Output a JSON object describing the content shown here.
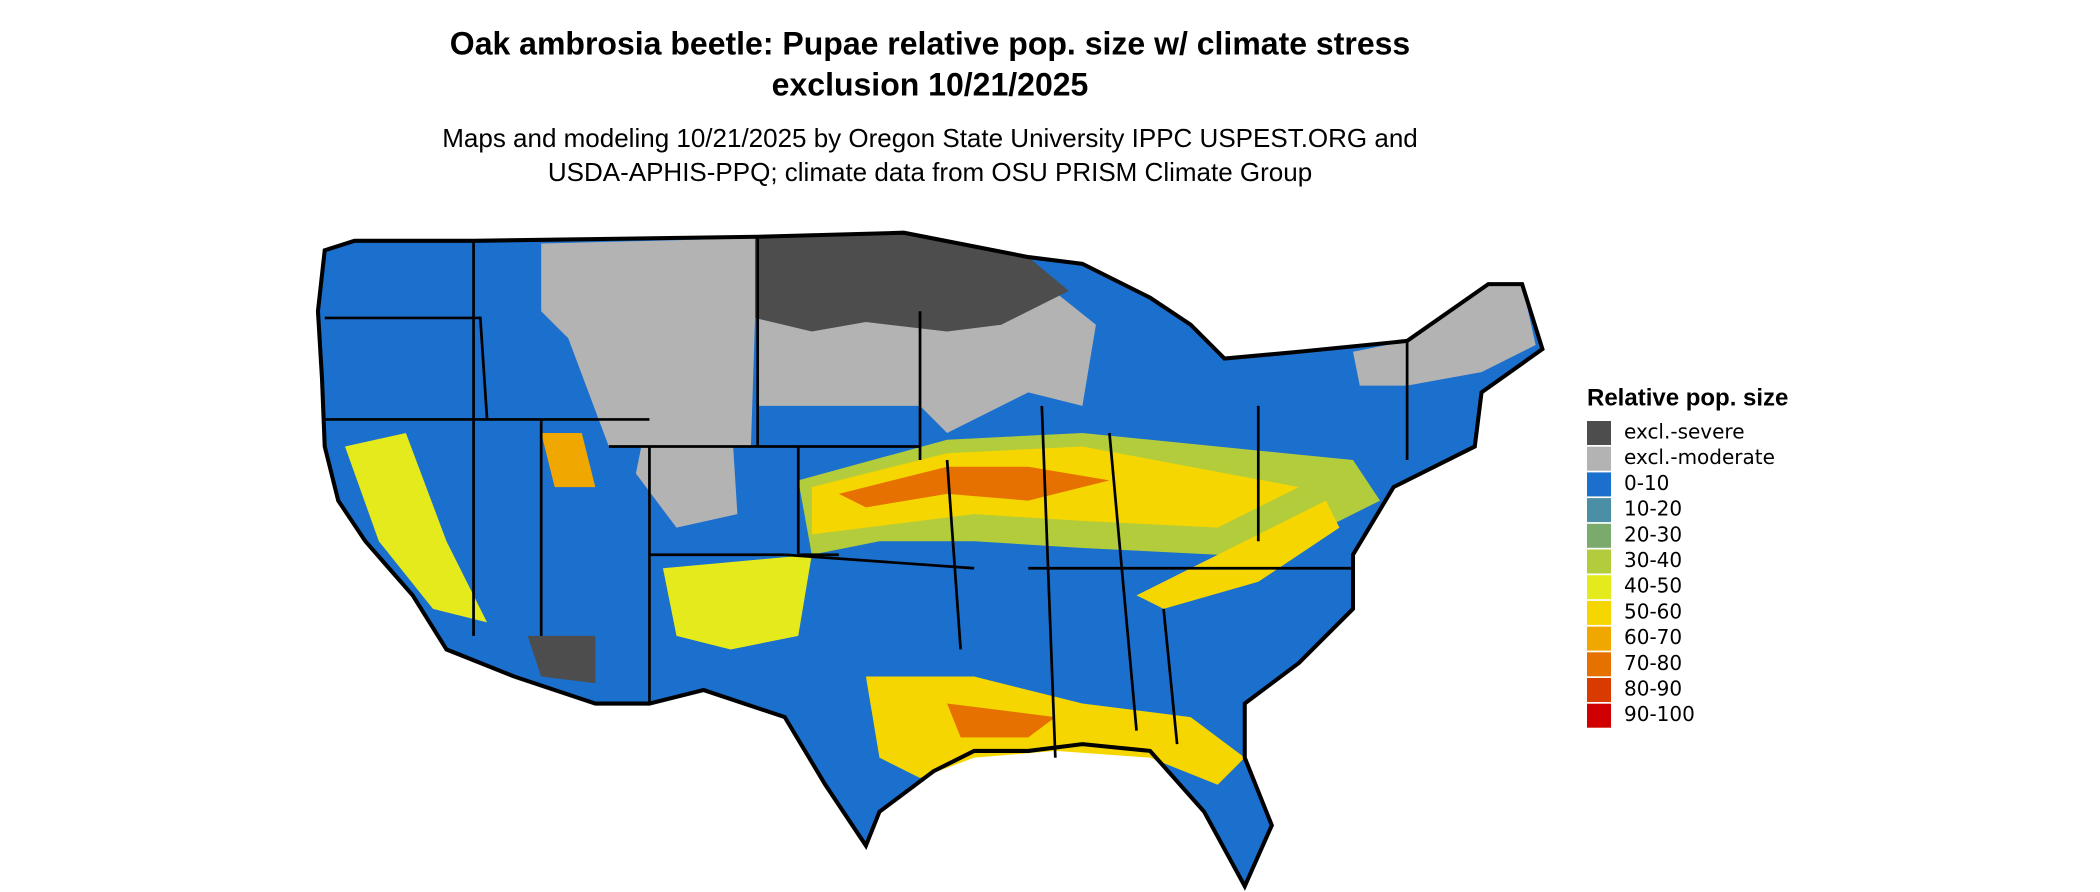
{
  "title_lines": [
    "Oak ambrosia beetle: Pupae relative pop. size w/ climate stress",
    "exclusion 10/21/2025"
  ],
  "subtitle_lines": [
    "Maps and modeling 10/21/2025 by Oregon State University IPPC USPEST.ORG and",
    "USDA-APHIS-PPQ; climate data from OSU PRISM Climate Group"
  ],
  "legend": {
    "title": "Relative pop. size",
    "items": [
      {
        "label": "excl.-severe",
        "color": "#4d4d4d"
      },
      {
        "label": "excl.-moderate",
        "color": "#b3b3b3"
      },
      {
        "label": "0-10",
        "color": "#1b6fcd"
      },
      {
        "label": "10-20",
        "color": "#4b8fa6"
      },
      {
        "label": "20-30",
        "color": "#7aaa6c"
      },
      {
        "label": "30-40",
        "color": "#b2cc3c"
      },
      {
        "label": "40-50",
        "color": "#e4ea1c"
      },
      {
        "label": "50-60",
        "color": "#f6d600"
      },
      {
        "label": "60-70",
        "color": "#f0a700"
      },
      {
        "label": "70-80",
        "color": "#e67000"
      },
      {
        "label": "80-90",
        "color": "#d83a00"
      },
      {
        "label": "90-100",
        "color": "#d00000"
      }
    ]
  }
}
